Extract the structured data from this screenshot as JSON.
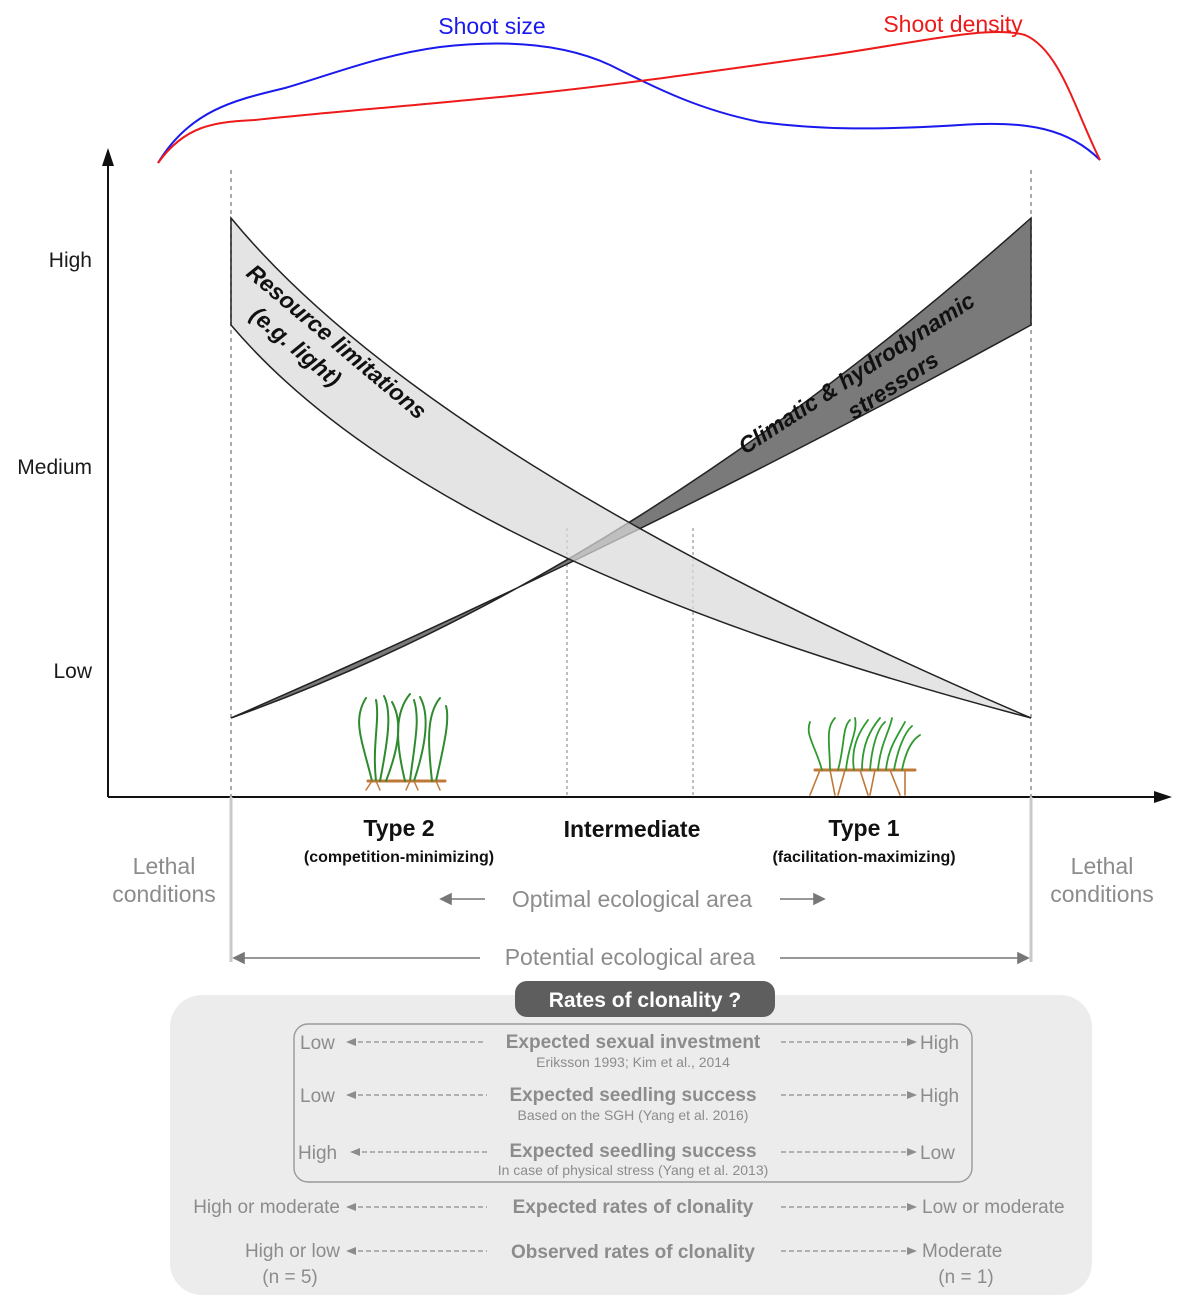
{
  "curves": {
    "shoot_size_label": "Shoot size",
    "shoot_density_label": "Shoot density",
    "shoot_size_color": "#1a1aee",
    "shoot_density_color": "#ee1a1a"
  },
  "axis": {
    "y_high": "High",
    "y_medium": "Medium",
    "y_low": "Low"
  },
  "bands": {
    "resource_line1": "Resource limitations",
    "resource_line2": "(e.g. light)",
    "climatic_line1": "Climatic & hydrodynamic",
    "climatic_line2": "stressors"
  },
  "zones": {
    "type2_title": "Type 2",
    "type2_sub": "(competition-minimizing)",
    "intermediate": "Intermediate",
    "type1_title": "Type 1",
    "type1_sub": "(facilitation-maximizing)",
    "lethal_left_1": "Lethal",
    "lethal_left_2": "conditions",
    "lethal_right_1": "Lethal",
    "lethal_right_2": "conditions",
    "optimal_area": "Optimal ecological area",
    "potential_area": "Potential ecological area"
  },
  "clonality": {
    "title": "Rates of clonality ?",
    "rows": [
      {
        "left": "Low",
        "title": "Expected sexual investment",
        "sub": "Eriksson 1993; Kim et al., 2014",
        "right": "High"
      },
      {
        "left": "Low",
        "title": "Expected seedling success",
        "sub": "Based on the SGH (Yang et al. 2016)",
        "right": "High"
      },
      {
        "left": "High",
        "title": "Expected seedling success",
        "sub": "In case of physical stress (Yang et al. 2013)",
        "right": "Low"
      },
      {
        "left": "High or moderate",
        "title": "Expected rates of clonality",
        "sub": "",
        "right": "Low or moderate"
      },
      {
        "left": "High or low",
        "left_n": "(n = 5)",
        "title": "Observed rates of clonality",
        "sub": "",
        "right": "Moderate",
        "right_n": "(n = 1)"
      }
    ]
  }
}
